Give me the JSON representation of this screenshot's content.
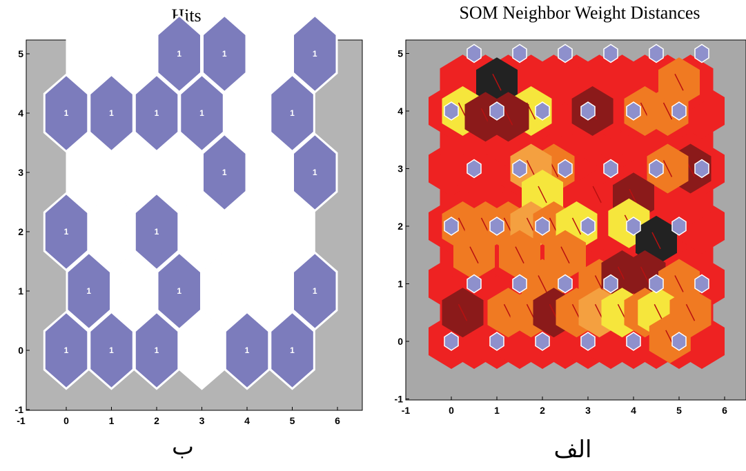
{
  "chart_data": [
    {
      "type": "heatmap",
      "title": "Hits",
      "caption": "ب",
      "xlim": [
        -1,
        6.5
      ],
      "ylim": [
        -1,
        5.2
      ],
      "xticks": [
        -1,
        0,
        1,
        2,
        3,
        4,
        5,
        6
      ],
      "yticks": [
        -1,
        0,
        1,
        2,
        3,
        4,
        5
      ],
      "grid_dims": [
        6,
        6
      ],
      "background_color": "#b4b4b4",
      "empty_color": "#ffffff",
      "hit_color": "#7c7cbc",
      "cells": [
        {
          "x": 0,
          "y": 0,
          "hits": 1
        },
        {
          "x": 1,
          "y": 0,
          "hits": 1
        },
        {
          "x": 2,
          "y": 0,
          "hits": 1
        },
        {
          "x": 3,
          "y": 0,
          "hits": 0
        },
        {
          "x": 4,
          "y": 0,
          "hits": 1
        },
        {
          "x": 5,
          "y": 0,
          "hits": 1
        },
        {
          "x": 0.5,
          "y": 1,
          "hits": 1
        },
        {
          "x": 1.5,
          "y": 1,
          "hits": 0
        },
        {
          "x": 2.5,
          "y": 1,
          "hits": 1
        },
        {
          "x": 3.5,
          "y": 1,
          "hits": 0
        },
        {
          "x": 4.5,
          "y": 1,
          "hits": 0
        },
        {
          "x": 5.5,
          "y": 1,
          "hits": 1
        },
        {
          "x": 0,
          "y": 2,
          "hits": 1
        },
        {
          "x": 1,
          "y": 2,
          "hits": 0
        },
        {
          "x": 2,
          "y": 2,
          "hits": 1
        },
        {
          "x": 3,
          "y": 2,
          "hits": 0
        },
        {
          "x": 4,
          "y": 2,
          "hits": 0
        },
        {
          "x": 5,
          "y": 2,
          "hits": 0
        },
        {
          "x": 0.5,
          "y": 3,
          "hits": 0
        },
        {
          "x": 1.5,
          "y": 3,
          "hits": 0
        },
        {
          "x": 2.5,
          "y": 3,
          "hits": 0
        },
        {
          "x": 3.5,
          "y": 3,
          "hits": 1
        },
        {
          "x": 4.5,
          "y": 3,
          "hits": 0
        },
        {
          "x": 5.5,
          "y": 3,
          "hits": 1
        },
        {
          "x": 0,
          "y": 4,
          "hits": 1
        },
        {
          "x": 1,
          "y": 4,
          "hits": 1
        },
        {
          "x": 2,
          "y": 4,
          "hits": 1
        },
        {
          "x": 3,
          "y": 4,
          "hits": 1
        },
        {
          "x": 4,
          "y": 4,
          "hits": 0
        },
        {
          "x": 5,
          "y": 4,
          "hits": 1
        },
        {
          "x": 0.5,
          "y": 5,
          "hits": 0
        },
        {
          "x": 1.5,
          "y": 5,
          "hits": 0
        },
        {
          "x": 2.5,
          "y": 5,
          "hits": 1
        },
        {
          "x": 3.5,
          "y": 5,
          "hits": 1
        },
        {
          "x": 4.5,
          "y": 5,
          "hits": 0
        },
        {
          "x": 5.5,
          "y": 5,
          "hits": 1
        }
      ]
    },
    {
      "type": "heatmap",
      "title": "SOM Neighbor Weight Distances",
      "caption": "الف",
      "xlim": [
        -1,
        6.5
      ],
      "ylim": [
        -1,
        5.2
      ],
      "xticks": [
        -1,
        0,
        1,
        2,
        3,
        4,
        5,
        6
      ],
      "yticks": [
        -1,
        0,
        1,
        2,
        3,
        4,
        5
      ],
      "grid_dims": [
        6,
        6
      ],
      "background_color": "#a8a8a8",
      "neuron_color": "#8e90cc",
      "palette": {
        "black": "#222222",
        "darkred": "#8b1a1a",
        "red": "#ee2222",
        "orange": "#f07a22",
        "lightorange": "#f4a040",
        "yellow": "#f6e63c"
      },
      "neurons": [
        [
          0,
          0
        ],
        [
          1,
          0
        ],
        [
          2,
          0
        ],
        [
          3,
          0
        ],
        [
          4,
          0
        ],
        [
          5,
          0
        ],
        [
          0.5,
          1
        ],
        [
          1.5,
          1
        ],
        [
          2.5,
          1
        ],
        [
          3.5,
          1
        ],
        [
          4.5,
          1
        ],
        [
          5.5,
          1
        ],
        [
          0,
          2
        ],
        [
          1,
          2
        ],
        [
          2,
          2
        ],
        [
          3,
          2
        ],
        [
          4,
          2
        ],
        [
          5,
          2
        ],
        [
          0.5,
          3
        ],
        [
          1.5,
          3
        ],
        [
          2.5,
          3
        ],
        [
          3.5,
          3
        ],
        [
          4.5,
          3
        ],
        [
          5.5,
          3
        ],
        [
          0,
          4
        ],
        [
          1,
          4
        ],
        [
          2,
          4
        ],
        [
          3,
          4
        ],
        [
          4,
          4
        ],
        [
          5,
          4
        ],
        [
          0.5,
          5
        ],
        [
          1.5,
          5
        ],
        [
          2.5,
          5
        ],
        [
          3.5,
          5
        ],
        [
          4.5,
          5
        ],
        [
          5.5,
          5
        ]
      ],
      "edges": [
        {
          "x": 1,
          "y": 4.5,
          "c": "black"
        },
        {
          "x": 0.25,
          "y": 4,
          "c": "yellow"
        },
        {
          "x": 1.75,
          "y": 4,
          "c": "yellow"
        },
        {
          "x": 0.75,
          "y": 3.9,
          "c": "darkred"
        },
        {
          "x": 1.25,
          "y": 3.9,
          "c": "darkred"
        },
        {
          "x": 3.1,
          "y": 4,
          "c": "darkred"
        },
        {
          "x": 4.25,
          "y": 4,
          "c": "orange"
        },
        {
          "x": 4.75,
          "y": 4,
          "c": "orange"
        },
        {
          "x": 5,
          "y": 4.5,
          "c": "orange"
        },
        {
          "x": 2.25,
          "y": 3,
          "c": "orange"
        },
        {
          "x": 1.75,
          "y": 3,
          "c": "lightorange"
        },
        {
          "x": 5.25,
          "y": 3,
          "c": "darkred"
        },
        {
          "x": 4.75,
          "y": 3,
          "c": "orange"
        },
        {
          "x": 2,
          "y": 2.55,
          "c": "yellow"
        },
        {
          "x": 3.2,
          "y": 2.55,
          "c": "red"
        },
        {
          "x": 3.75,
          "y": 2.5,
          "c": "red"
        },
        {
          "x": 4,
          "y": 2.5,
          "c": "darkred"
        },
        {
          "x": 3.9,
          "y": 2.05,
          "c": "yellow"
        },
        {
          "x": 0.25,
          "y": 2,
          "c": "orange"
        },
        {
          "x": 0.75,
          "y": 2,
          "c": "orange"
        },
        {
          "x": 1.25,
          "y": 2,
          "c": "orange"
        },
        {
          "x": 1.75,
          "y": 2,
          "c": "lightorange"
        },
        {
          "x": 2.25,
          "y": 2,
          "c": "orange"
        },
        {
          "x": 2.75,
          "y": 2,
          "c": "yellow"
        },
        {
          "x": 0.5,
          "y": 1.5,
          "c": "orange"
        },
        {
          "x": 1.5,
          "y": 1.5,
          "c": "orange"
        },
        {
          "x": 2.5,
          "y": 1.5,
          "c": "orange"
        },
        {
          "x": 4.5,
          "y": 1.75,
          "c": "black"
        },
        {
          "x": 3.25,
          "y": 1.0,
          "c": "orange"
        },
        {
          "x": 2,
          "y": 1.0,
          "c": "orange"
        },
        {
          "x": 3.75,
          "y": 1.15,
          "c": "darkred"
        },
        {
          "x": 4.25,
          "y": 1.15,
          "c": "darkred"
        },
        {
          "x": 5,
          "y": 1,
          "c": "orange"
        },
        {
          "x": 0.25,
          "y": 0.5,
          "c": "darkred"
        },
        {
          "x": 1.25,
          "y": 0.5,
          "c": "orange"
        },
        {
          "x": 1.75,
          "y": 0.5,
          "c": "orange"
        },
        {
          "x": 2.25,
          "y": 0.5,
          "c": "darkred"
        },
        {
          "x": 2.75,
          "y": 0.5,
          "c": "orange"
        },
        {
          "x": 3.25,
          "y": 0.5,
          "c": "lightorange"
        },
        {
          "x": 3.75,
          "y": 0.5,
          "c": "yellow"
        },
        {
          "x": 4.25,
          "y": 0.5,
          "c": "orange"
        },
        {
          "x": 4.55,
          "y": 0.5,
          "c": "yellow"
        },
        {
          "x": 4.8,
          "y": 0.05,
          "c": "orange"
        },
        {
          "x": 5.25,
          "y": 0.5,
          "c": "orange"
        }
      ]
    }
  ]
}
